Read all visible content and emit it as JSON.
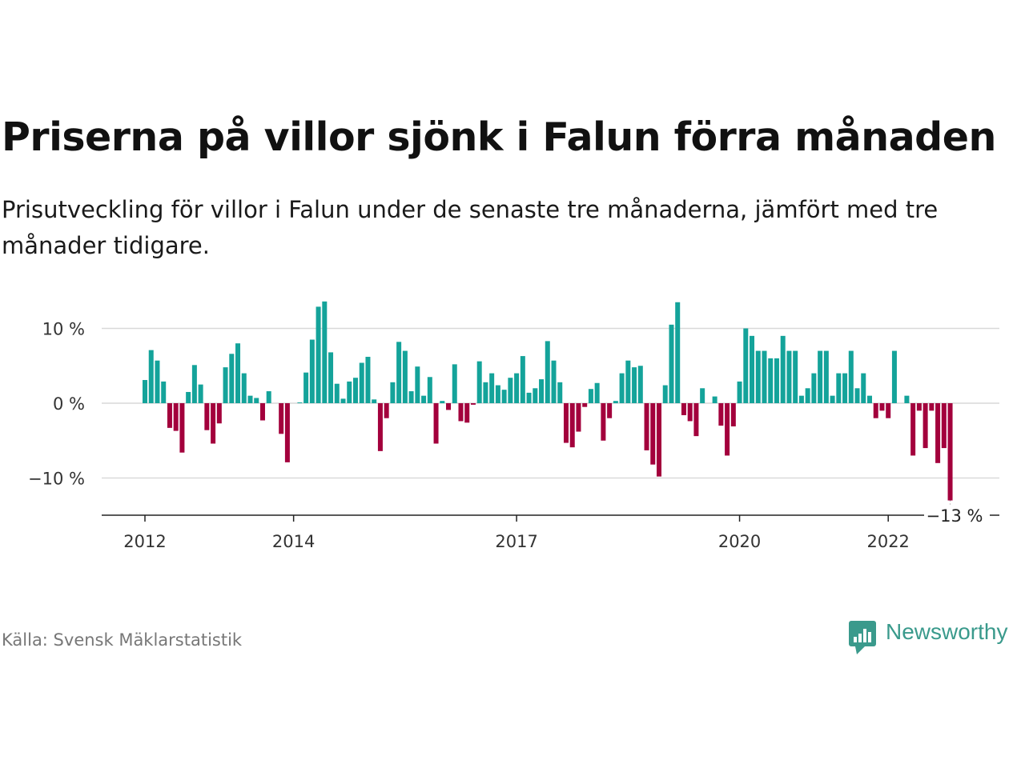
{
  "title": "Priserna på villor sjönk i Falun förra månaden",
  "subtitle": "Prisutveckling för villor i Falun under de senaste tre månaderna, jämfört med tre månader tidigare.",
  "source": "Källa: Svensk Mäklarstatistik",
  "brand": "Newsworthy",
  "colors": {
    "positive": "#14a39a",
    "negative": "#a3003c",
    "grid": "#d9d9d9",
    "axis": "#222222",
    "brand": "#3a9a8c"
  },
  "chart_data": {
    "type": "bar",
    "title": "Priserna på villor sjönk i Falun förra månaden",
    "xlabel": "",
    "ylabel": "",
    "ylim": [
      -15,
      14
    ],
    "grid": true,
    "y_ticks": [
      {
        "value": 10,
        "label": "10 %"
      },
      {
        "value": 0,
        "label": "0 %"
      },
      {
        "value": -10,
        "label": "−10 %"
      }
    ],
    "x_ticks": [
      {
        "value": 2012,
        "label": "2012"
      },
      {
        "value": 2014,
        "label": "2014"
      },
      {
        "value": 2017,
        "label": "2017"
      },
      {
        "value": 2020,
        "label": "2020"
      },
      {
        "value": 2022,
        "label": "2022"
      }
    ],
    "start": "2012-01",
    "end_label": "−13 %",
    "values": [
      3.1,
      7.1,
      5.7,
      2.9,
      -3.3,
      -3.7,
      -6.6,
      1.5,
      5.1,
      2.5,
      -3.6,
      -5.4,
      -2.7,
      4.8,
      6.6,
      8.0,
      4.0,
      1.0,
      0.7,
      -2.3,
      1.6,
      0.0,
      -4.1,
      -7.9,
      0.0,
      0.1,
      4.1,
      8.5,
      12.9,
      13.6,
      6.8,
      2.6,
      0.6,
      2.9,
      3.4,
      5.4,
      6.2,
      0.5,
      -6.4,
      -2.0,
      2.8,
      8.2,
      7.0,
      1.6,
      4.9,
      1.0,
      3.5,
      -5.4,
      0.3,
      -0.9,
      5.2,
      -2.4,
      -2.6,
      -0.2,
      5.6,
      2.8,
      4.0,
      2.4,
      1.8,
      3.4,
      4.0,
      6.3,
      1.4,
      2.0,
      3.2,
      8.3,
      5.7,
      2.8,
      -5.3,
      -5.9,
      -3.8,
      -0.5,
      1.9,
      2.7,
      -5.0,
      -2.0,
      0.3,
      4.0,
      5.7,
      4.8,
      5.0,
      -6.3,
      -8.2,
      -9.8,
      2.4,
      10.5,
      13.5,
      -1.6,
      -2.4,
      -4.4,
      2.0,
      0.0,
      0.9,
      -3.0,
      -7.0,
      -3.1,
      2.9,
      10.0,
      9.0,
      7.0,
      7.0,
      6.0,
      6.0,
      9.0,
      7.0,
      7.0,
      1.0,
      2.0,
      4.0,
      7.0,
      7.0,
      1.0,
      4.0,
      4.0,
      7.0,
      2.0,
      4.0,
      1.0,
      -2.0,
      -1.0,
      -2.0,
      7.0,
      0.0,
      1.0,
      -7.0,
      -1.0,
      -6.0,
      -1.0,
      -8.0,
      -6.0,
      -13.0
    ]
  }
}
